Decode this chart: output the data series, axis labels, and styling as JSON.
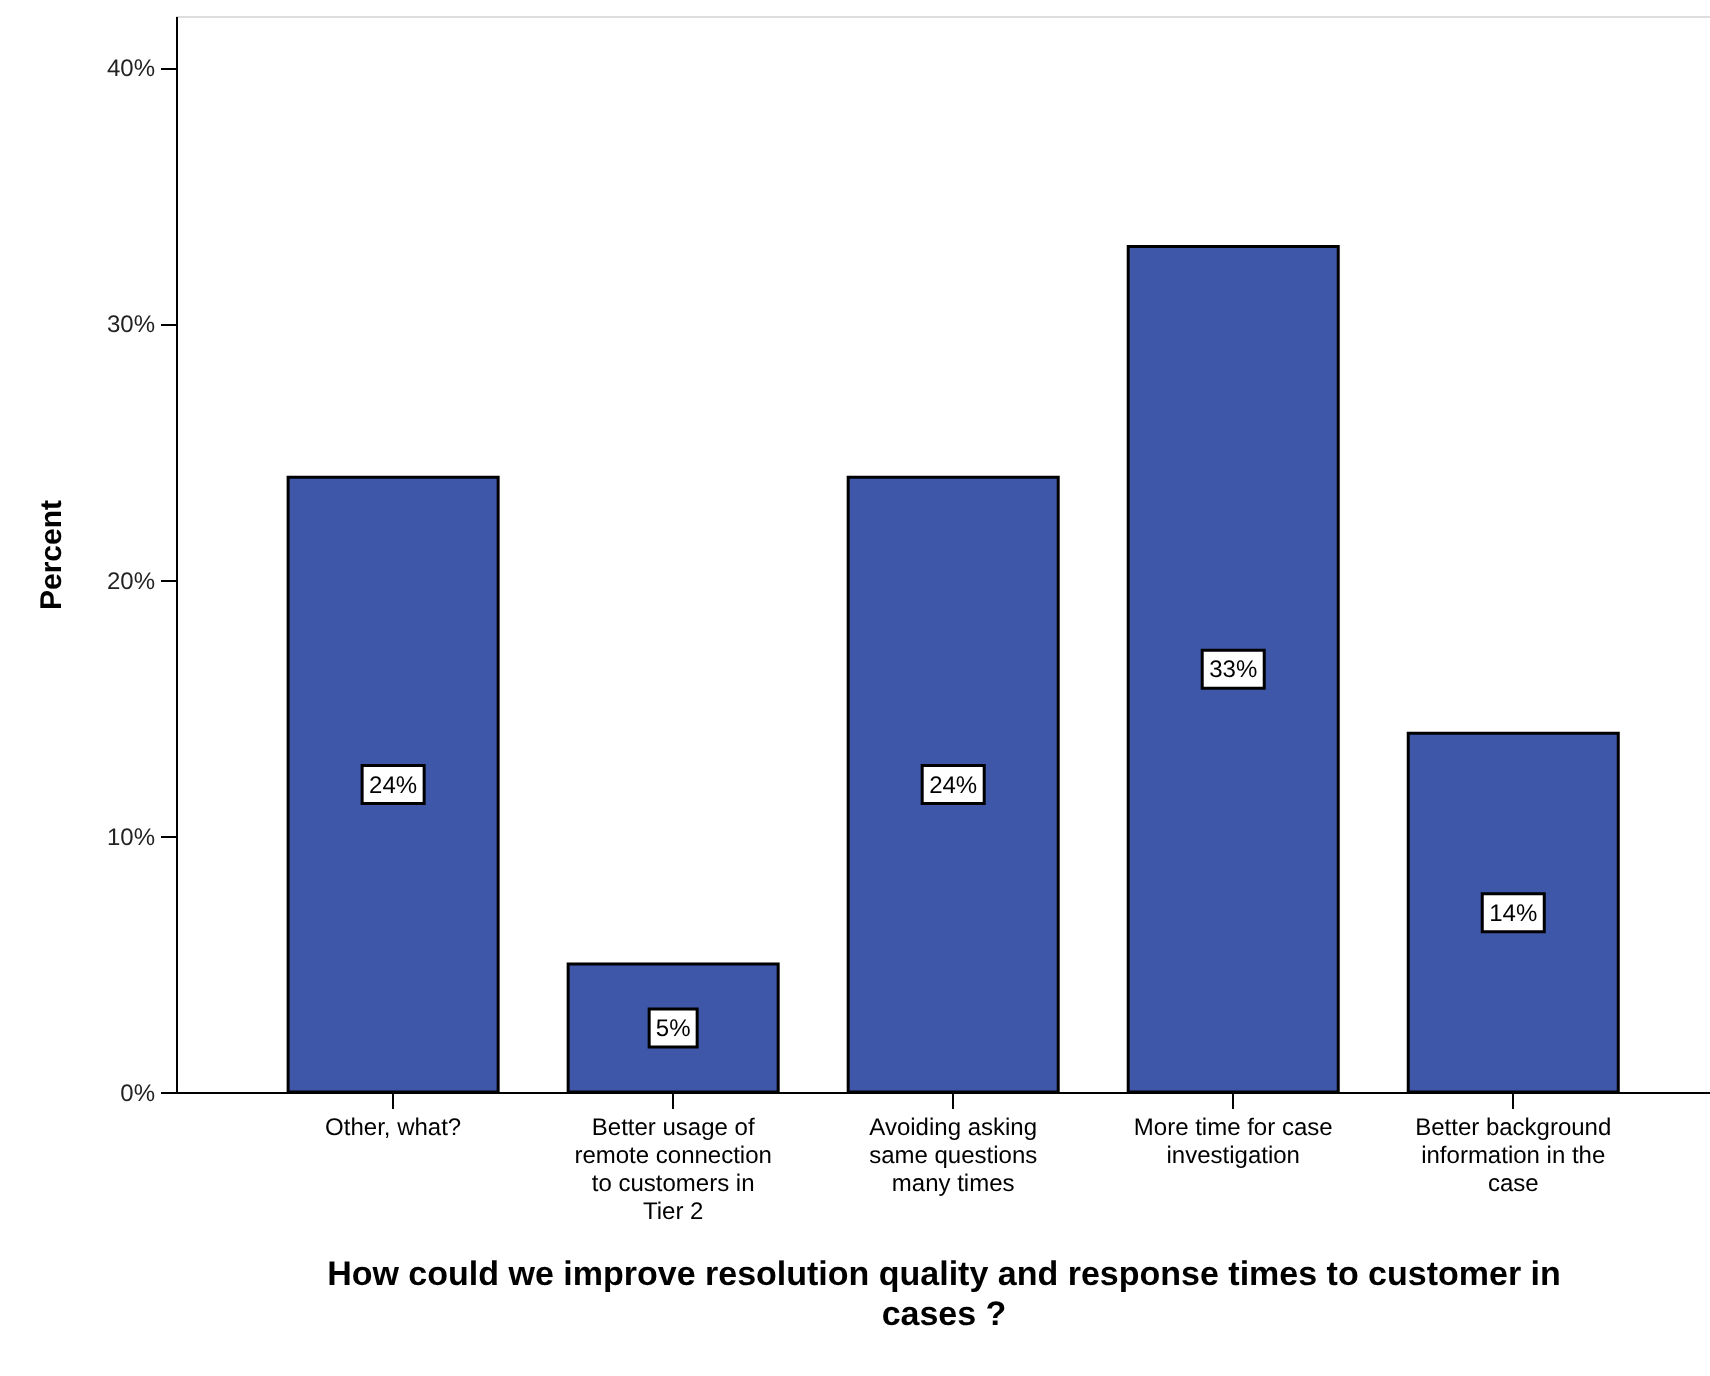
{
  "chart_data": {
    "type": "bar",
    "xlabel": "How could we improve resolution quality and response times to customer in cases ?",
    "ylabel": "Percent",
    "categories": [
      "Other, what?",
      "Better usage of remote connection to customers in Tier 2",
      "Avoiding asking same questions many times",
      "More time for case investigation",
      "Better background information in the case"
    ],
    "values": [
      24,
      5,
      24,
      33,
      14
    ],
    "value_labels": [
      "24%",
      "5%",
      "24%",
      "33%",
      "14%"
    ],
    "color": "#3f57a9",
    "ylim": [
      0,
      42
    ],
    "yticks": [
      {
        "value": 0,
        "label": "0%"
      },
      {
        "value": 10,
        "label": "10%"
      },
      {
        "value": 20,
        "label": "20%"
      },
      {
        "value": 30,
        "label": "30%"
      },
      {
        "value": 40,
        "label": "40%"
      }
    ]
  }
}
